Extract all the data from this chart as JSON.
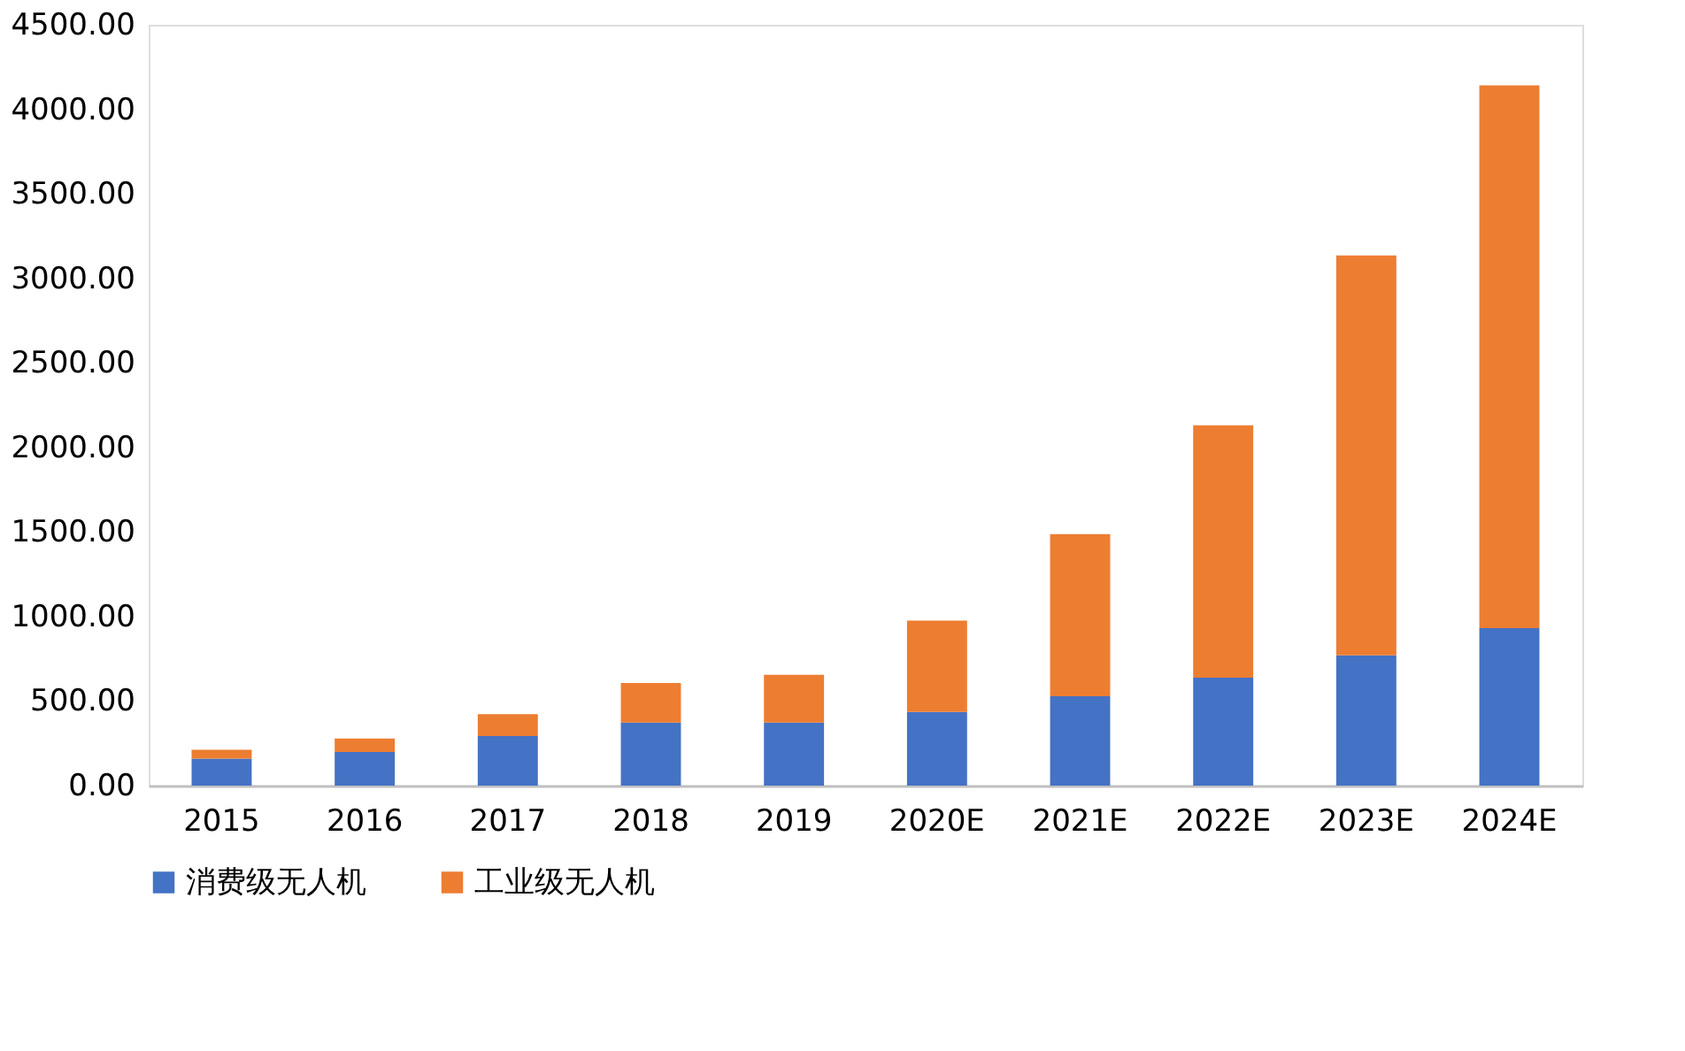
{
  "chart_data": {
    "type": "bar",
    "stacked": true,
    "categories": [
      "2015",
      "2016",
      "2017",
      "2018",
      "2019",
      "2020E",
      "2021E",
      "2022E",
      "2023E",
      "2024E"
    ],
    "series": [
      {
        "name": "消费级无人机",
        "color": "#4472c4",
        "values": [
          160,
          199,
          293,
          373,
          373,
          435,
          529,
          638,
          771,
          931
        ]
      },
      {
        "name": "工业级无人机",
        "color": "#ed7d31",
        "values": [
          52,
          80,
          129,
          234,
          282,
          541,
          959,
          1493,
          2364,
          3211
        ]
      }
    ],
    "ylim": [
      0,
      4500
    ],
    "yticks": [
      {
        "value": 0,
        "label": "0.00"
      },
      {
        "value": 500,
        "label": "500.00"
      },
      {
        "value": 1000,
        "label": "1000.00"
      },
      {
        "value": 1500,
        "label": "1500.00"
      },
      {
        "value": 2000,
        "label": "2000.00"
      },
      {
        "value": 2500,
        "label": "2500.00"
      },
      {
        "value": 3000,
        "label": "3000.00"
      },
      {
        "value": 3500,
        "label": "3500.00"
      },
      {
        "value": 4000,
        "label": "4000.00"
      },
      {
        "value": 4500,
        "label": "4500.00"
      }
    ],
    "grid": false,
    "legend": "bottom"
  }
}
